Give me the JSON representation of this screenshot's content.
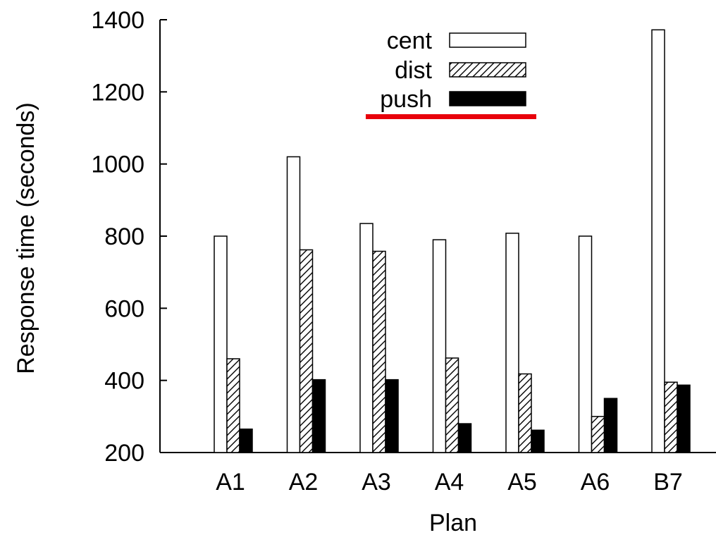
{
  "chart_data": {
    "type": "bar",
    "title": "",
    "xlabel": "Plan",
    "ylabel": "Response time (seconds)",
    "categories": [
      "A1",
      "A2",
      "A3",
      "A4",
      "A5",
      "A6",
      "B7"
    ],
    "ylim": [
      200,
      1400
    ],
    "yticks": [
      200,
      400,
      600,
      800,
      1000,
      1200,
      1400
    ],
    "grid": false,
    "legend_position": "top-center",
    "series": [
      {
        "name": "cent",
        "style": "hollow",
        "values": [
          800,
          1020,
          835,
          790,
          808,
          800,
          1372
        ]
      },
      {
        "name": "dist",
        "style": "hatched",
        "values": [
          460,
          762,
          758,
          462,
          418,
          300,
          395
        ]
      },
      {
        "name": "push",
        "style": "solid",
        "values": [
          265,
          402,
          402,
          280,
          262,
          350,
          387
        ]
      }
    ],
    "annotation_color": "#e8000b"
  }
}
